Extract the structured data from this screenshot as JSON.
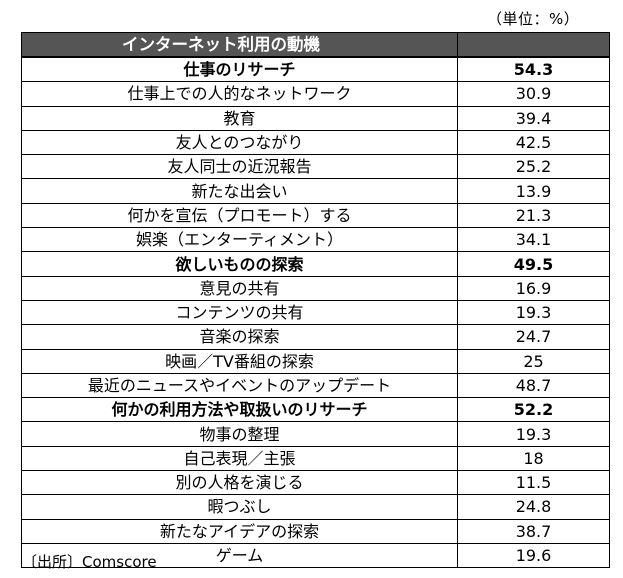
{
  "unit_label": "（単位：%）",
  "table": {
    "header": {
      "label": "インターネット利用の動機",
      "value": ""
    },
    "rows": [
      {
        "label": "仕事のリサーチ",
        "value": "54.3",
        "bold": true
      },
      {
        "label": "仕事上での人的なネットワーク",
        "value": "30.9",
        "bold": false
      },
      {
        "label": "教育",
        "value": "39.4",
        "bold": false
      },
      {
        "label": "友人とのつながり",
        "value": "42.5",
        "bold": false
      },
      {
        "label": "友人同士の近況報告",
        "value": "25.2",
        "bold": false
      },
      {
        "label": "新たな出会い",
        "value": "13.9",
        "bold": false
      },
      {
        "label": "何かを宣伝（プロモート）する",
        "value": "21.3",
        "bold": false
      },
      {
        "label": "娯楽（エンターティメント）",
        "value": "34.1",
        "bold": false
      },
      {
        "label": "欲しいものの探索",
        "value": "49.5",
        "bold": true
      },
      {
        "label": "意見の共有",
        "value": "16.9",
        "bold": false
      },
      {
        "label": "コンテンツの共有",
        "value": "19.3",
        "bold": false
      },
      {
        "label": "音楽の探索",
        "value": "24.7",
        "bold": false
      },
      {
        "label": "映画／TV番組の探索",
        "value": "25",
        "bold": false
      },
      {
        "label": "最近のニュースやイベントのアップデート",
        "value": "48.7",
        "bold": false
      },
      {
        "label": "何かの利用方法や取扱いのリサーチ",
        "value": "52.2",
        "bold": true
      },
      {
        "label": "物事の整理",
        "value": "19.3",
        "bold": false
      },
      {
        "label": "自己表現／主張",
        "value": "18",
        "bold": false
      },
      {
        "label": "別の人格を演じる",
        "value": "11.5",
        "bold": false
      },
      {
        "label": "暇つぶし",
        "value": "24.8",
        "bold": false
      },
      {
        "label": "新たなアイデアの探索",
        "value": "38.7",
        "bold": false
      },
      {
        "label": "ゲーム",
        "value": "19.6",
        "bold": false
      }
    ]
  },
  "source_label": "〔出所〕Comscore",
  "colors": {
    "header_bg": "#555555",
    "header_text": "#ffffff"
  }
}
